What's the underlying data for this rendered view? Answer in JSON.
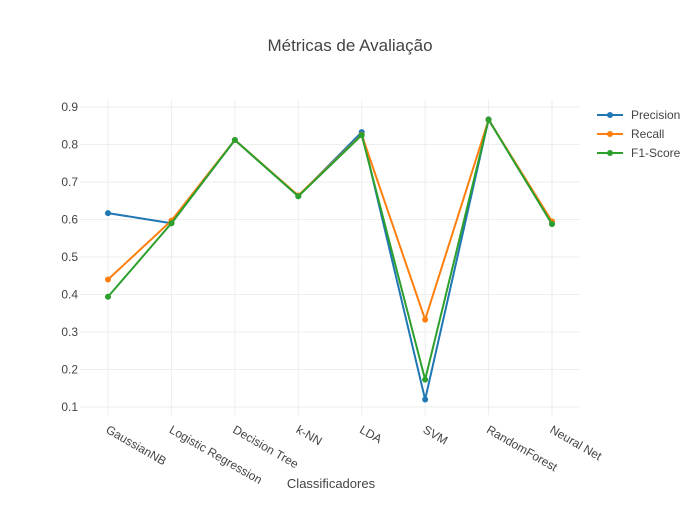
{
  "chart_data": {
    "type": "line",
    "title": "Métricas de Avaliação",
    "xlabel": "Classificadores",
    "ylabel": "",
    "categories": [
      "GaussianNB",
      "Logistic Regression",
      "Decision Tree",
      "k-NN",
      "LDA",
      "SVM",
      "RandomForest",
      "Neural Net"
    ],
    "yticks": [
      "0.1",
      "0.2",
      "0.3",
      "0.4",
      "0.5",
      "0.6",
      "0.7",
      "0.8",
      "0.9"
    ],
    "ylim": [
      0.08,
      0.92
    ],
    "grid": true,
    "legend_position": "top-right",
    "series": [
      {
        "name": "Precision",
        "color": "#1f77b4",
        "values": [
          0.617,
          0.59,
          0.812,
          0.662,
          0.833,
          0.12,
          0.867,
          0.588
        ]
      },
      {
        "name": "Recall",
        "color": "#ff7f0e",
        "values": [
          0.44,
          0.597,
          0.812,
          0.664,
          0.826,
          0.333,
          0.866,
          0.595
        ]
      },
      {
        "name": "F1-Score",
        "color": "#2ca02c",
        "values": [
          0.394,
          0.59,
          0.812,
          0.662,
          0.825,
          0.173,
          0.866,
          0.588
        ]
      }
    ]
  }
}
